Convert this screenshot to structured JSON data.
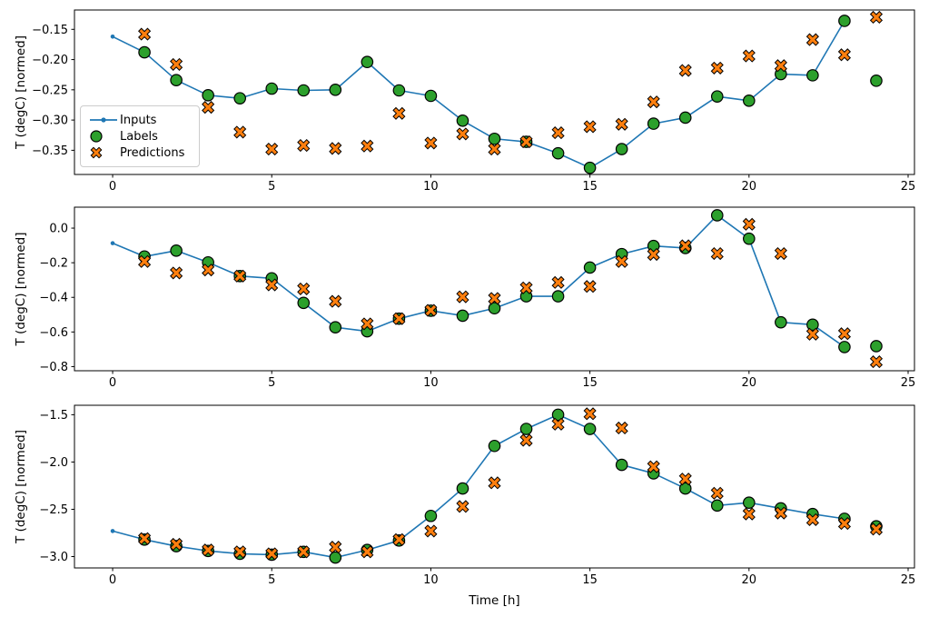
{
  "figure": {
    "xlabel": "Time [h]",
    "ylabel": "T (degC) [normed]",
    "legend": {
      "inputs_label": "Inputs",
      "labels_label": "Labels",
      "predictions_label": "Predictions"
    },
    "colors": {
      "inputs": "#1f77b4",
      "labels": "#2ca02c",
      "predictions": "#ff7f0e",
      "marker_edge": "#000000",
      "axis": "#000000",
      "legend_border": "#cccccc"
    }
  },
  "chart_data": [
    {
      "type": "line",
      "name": "subplot-top",
      "ylabel": "T (degC) [normed]",
      "legend_position": "center-left",
      "grid": false,
      "xlim": [
        -1.2,
        25.2
      ],
      "ylim": [
        -0.39,
        -0.118
      ],
      "xticks": [
        0,
        5,
        10,
        15,
        20,
        25
      ],
      "xtick_labels": [
        "0",
        "5",
        "10",
        "15",
        "20",
        "25"
      ],
      "yticks": [
        -0.15,
        -0.2,
        -0.25,
        -0.3,
        -0.35
      ],
      "ytick_labels": [
        "−0.15",
        "−0.20",
        "−0.25",
        "−0.30",
        "−0.35"
      ],
      "series": [
        {
          "name": "Inputs",
          "style": "line+dot",
          "x": [
            0,
            1,
            2,
            3,
            4,
            5,
            6,
            7,
            8,
            9,
            10,
            11,
            12,
            13,
            14,
            15,
            16,
            17,
            18,
            19,
            20,
            21,
            22,
            23
          ],
          "y": [
            -0.162,
            -0.188,
            -0.234,
            -0.259,
            -0.264,
            -0.248,
            -0.251,
            -0.25,
            -0.204,
            -0.251,
            -0.26,
            -0.301,
            -0.331,
            -0.336,
            -0.355,
            -0.379,
            -0.348,
            -0.306,
            -0.296,
            -0.261,
            -0.268,
            -0.224,
            -0.226,
            -0.136
          ]
        },
        {
          "name": "Labels",
          "style": "circle",
          "x": [
            1,
            2,
            3,
            4,
            5,
            6,
            7,
            8,
            9,
            10,
            11,
            12,
            13,
            14,
            15,
            16,
            17,
            18,
            19,
            20,
            21,
            22,
            23,
            24
          ],
          "y": [
            -0.188,
            -0.234,
            -0.259,
            -0.264,
            -0.248,
            -0.251,
            -0.25,
            -0.204,
            -0.251,
            -0.26,
            -0.301,
            -0.331,
            -0.336,
            -0.355,
            -0.379,
            -0.348,
            -0.306,
            -0.296,
            -0.261,
            -0.268,
            -0.224,
            -0.226,
            -0.136,
            -0.235
          ]
        },
        {
          "name": "Predictions",
          "style": "xmark",
          "x": [
            1,
            2,
            3,
            4,
            5,
            6,
            7,
            8,
            9,
            10,
            11,
            12,
            13,
            14,
            15,
            16,
            17,
            18,
            19,
            20,
            21,
            22,
            23,
            24
          ],
          "y": [
            -0.158,
            -0.208,
            -0.279,
            -0.32,
            -0.348,
            -0.342,
            -0.347,
            -0.343,
            -0.289,
            -0.338,
            -0.323,
            -0.348,
            -0.336,
            -0.321,
            -0.311,
            -0.307,
            -0.27,
            -0.218,
            -0.214,
            -0.194,
            -0.21,
            -0.167,
            -0.192,
            -0.13
          ]
        }
      ]
    },
    {
      "type": "line",
      "name": "subplot-middle",
      "ylabel": "T (degC) [normed]",
      "grid": false,
      "xlim": [
        -1.2,
        25.2
      ],
      "ylim": [
        -0.824,
        0.121
      ],
      "xticks": [
        0,
        5,
        10,
        15,
        20,
        25
      ],
      "xtick_labels": [
        "0",
        "5",
        "10",
        "15",
        "20",
        "25"
      ],
      "yticks": [
        0.0,
        -0.2,
        -0.4,
        -0.6,
        -0.8
      ],
      "ytick_labels": [
        "0.0",
        "−0.2",
        "−0.4",
        "−0.6",
        "−0.8"
      ],
      "series": [
        {
          "name": "Inputs",
          "style": "line+dot",
          "x": [
            0,
            1,
            2,
            3,
            4,
            5,
            6,
            7,
            8,
            9,
            10,
            11,
            12,
            13,
            14,
            15,
            16,
            17,
            18,
            19,
            20,
            21,
            22,
            23
          ],
          "y": [
            -0.087,
            -0.164,
            -0.13,
            -0.198,
            -0.277,
            -0.29,
            -0.432,
            -0.573,
            -0.596,
            -0.523,
            -0.477,
            -0.506,
            -0.463,
            -0.394,
            -0.394,
            -0.228,
            -0.15,
            -0.103,
            -0.115,
            0.074,
            -0.061,
            -0.544,
            -0.558,
            -0.687
          ]
        },
        {
          "name": "Labels",
          "style": "circle",
          "x": [
            1,
            2,
            3,
            4,
            5,
            6,
            7,
            8,
            9,
            10,
            11,
            12,
            13,
            14,
            15,
            16,
            17,
            18,
            19,
            20,
            21,
            22,
            23,
            24
          ],
          "y": [
            -0.164,
            -0.13,
            -0.198,
            -0.277,
            -0.29,
            -0.432,
            -0.573,
            -0.596,
            -0.523,
            -0.477,
            -0.506,
            -0.463,
            -0.394,
            -0.394,
            -0.228,
            -0.15,
            -0.103,
            -0.115,
            0.074,
            -0.061,
            -0.544,
            -0.558,
            -0.687,
            -0.682
          ]
        },
        {
          "name": "Predictions",
          "style": "xmark",
          "x": [
            1,
            2,
            3,
            4,
            5,
            6,
            7,
            8,
            9,
            10,
            11,
            12,
            13,
            14,
            15,
            16,
            17,
            18,
            19,
            20,
            21,
            22,
            23,
            24
          ],
          "y": [
            -0.193,
            -0.259,
            -0.242,
            -0.277,
            -0.328,
            -0.351,
            -0.423,
            -0.553,
            -0.523,
            -0.475,
            -0.397,
            -0.406,
            -0.345,
            -0.314,
            -0.337,
            -0.193,
            -0.152,
            -0.102,
            -0.147,
            0.022,
            -0.147,
            -0.613,
            -0.61,
            -0.772
          ]
        }
      ]
    },
    {
      "type": "line",
      "name": "subplot-bottom",
      "ylabel": "T (degC) [normed]",
      "xlabel": "Time [h]",
      "grid": false,
      "xlim": [
        -1.2,
        25.2
      ],
      "ylim": [
        -3.12,
        -1.4
      ],
      "xticks": [
        0,
        5,
        10,
        15,
        20,
        25
      ],
      "xtick_labels": [
        "0",
        "5",
        "10",
        "15",
        "20",
        "25"
      ],
      "yticks": [
        -1.5,
        -2.0,
        -2.5,
        -3.0
      ],
      "ytick_labels": [
        "−1.5",
        "−2.0",
        "−2.5",
        "−3.0"
      ],
      "series": [
        {
          "name": "Inputs",
          "style": "line+dot",
          "x": [
            0,
            1,
            2,
            3,
            4,
            5,
            6,
            7,
            8,
            9,
            10,
            11,
            12,
            13,
            14,
            15,
            16,
            17,
            18,
            19,
            20,
            21,
            22,
            23
          ],
          "y": [
            -2.73,
            -2.82,
            -2.89,
            -2.94,
            -2.97,
            -2.98,
            -2.95,
            -3.01,
            -2.93,
            -2.83,
            -2.57,
            -2.28,
            -1.83,
            -1.65,
            -1.5,
            -1.65,
            -2.03,
            -2.12,
            -2.28,
            -2.46,
            -2.43,
            -2.49,
            -2.55,
            -2.6
          ]
        },
        {
          "name": "Labels",
          "style": "circle",
          "x": [
            1,
            2,
            3,
            4,
            5,
            6,
            7,
            8,
            9,
            10,
            11,
            12,
            13,
            14,
            15,
            16,
            17,
            18,
            19,
            20,
            21,
            22,
            23,
            24
          ],
          "y": [
            -2.82,
            -2.89,
            -2.94,
            -2.97,
            -2.98,
            -2.95,
            -3.01,
            -2.93,
            -2.83,
            -2.57,
            -2.28,
            -1.83,
            -1.65,
            -1.5,
            -1.65,
            -2.03,
            -2.12,
            -2.28,
            -2.46,
            -2.43,
            -2.49,
            -2.55,
            -2.6,
            -2.68
          ]
        },
        {
          "name": "Predictions",
          "style": "xmark",
          "x": [
            1,
            2,
            3,
            4,
            5,
            6,
            7,
            8,
            9,
            10,
            11,
            12,
            13,
            14,
            15,
            16,
            17,
            18,
            19,
            20,
            21,
            22,
            23,
            24
          ],
          "y": [
            -2.81,
            -2.87,
            -2.93,
            -2.95,
            -2.97,
            -2.95,
            -2.9,
            -2.95,
            -2.82,
            -2.73,
            -2.47,
            -2.22,
            -1.77,
            -1.6,
            -1.49,
            -1.64,
            -2.05,
            -2.18,
            -2.33,
            -2.55,
            -2.54,
            -2.61,
            -2.65,
            -2.71
          ]
        }
      ]
    }
  ]
}
